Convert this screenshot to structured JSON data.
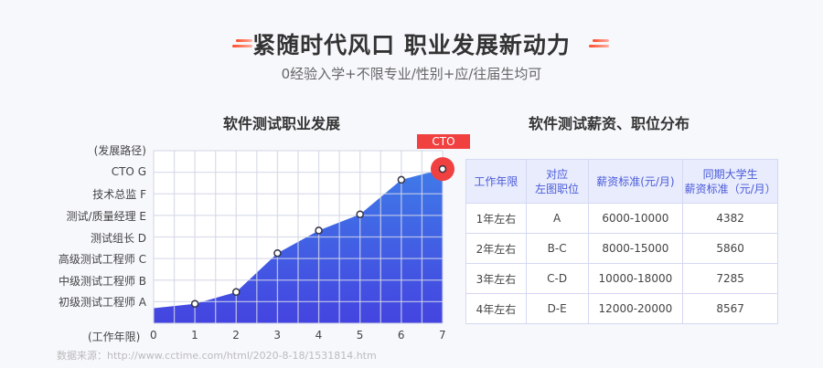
{
  "header": {
    "title": "紧随时代风口 职业发展新动力",
    "subtitle": "0经验入学+不限专业/性别+应/往届生均可"
  },
  "left_title": "软件测试职业发展",
  "right_title": "软件测试薪资、职位分布",
  "source": "数据来源：http://www.cctime.com/html/2020-8-18/1531814.htm",
  "chart_data": {
    "type": "area",
    "xlabel": "(工作年限)",
    "ylabel": "(发展路径)",
    "x": [
      0,
      1,
      2,
      3,
      4,
      5,
      6,
      7
    ],
    "y_ticks": [
      "初级测试工程师  A",
      "中级测试工程师  B",
      "高级测试工程师  C",
      "测试组长  D",
      "测试/质量经理  E",
      "技术总监  F",
      "CTO  G"
    ],
    "values": [
      0.7,
      0.9,
      1.45,
      3.25,
      4.3,
      5.05,
      6.65,
      7.15
    ],
    "xlim": [
      0,
      7
    ],
    "ylim": [
      0,
      8
    ],
    "grid": true,
    "annotation": "CTO",
    "colors": {
      "fill_top": "#3f7ae8",
      "fill_bottom": "#4444e0",
      "highlight": "#f04040"
    }
  },
  "table": {
    "headers": [
      "工作年限",
      "对应\n左图职位",
      "薪资标准(元/月)",
      "同期大学生\n薪资标准（元/月）"
    ],
    "rows": [
      [
        "1年左右",
        "A",
        "6000-10000",
        "4382"
      ],
      [
        "2年左右",
        "B-C",
        "8000-15000",
        "5860"
      ],
      [
        "3年左右",
        "C-D",
        "10000-18000",
        "7285"
      ],
      [
        "4年左右",
        "D-E",
        "12000-20000",
        "8567"
      ]
    ]
  }
}
